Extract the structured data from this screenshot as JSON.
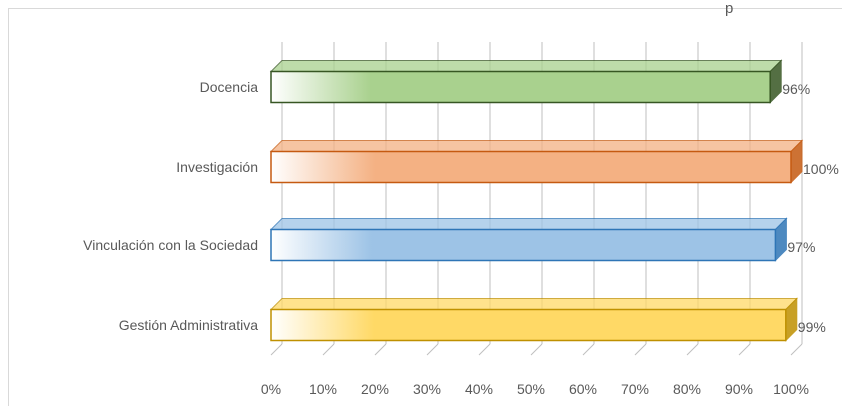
{
  "chart_data": {
    "type": "bar",
    "orientation": "horizontal",
    "style": "3d-gradient",
    "title": "p",
    "categories": [
      "Docencia",
      "Investigación",
      "Vinculación con la Sociedad",
      "Gestión Administrativa"
    ],
    "values": [
      96,
      100,
      97,
      99
    ],
    "value_labels": [
      "96%",
      "100%",
      "97%",
      "99%"
    ],
    "colors": [
      "#a9d18e",
      "#f4b183",
      "#9dc3e6",
      "#ffd966"
    ],
    "border_colors": [
      "#375623",
      "#c55a11",
      "#2e75b6",
      "#bf9000"
    ],
    "xlim": [
      0,
      100
    ],
    "xticks": [
      "0%",
      "10%",
      "20%",
      "30%",
      "40%",
      "50%",
      "60%",
      "70%",
      "80%",
      "90%",
      "100%"
    ],
    "xlabel": "",
    "ylabel": "",
    "grid": "vertical"
  }
}
